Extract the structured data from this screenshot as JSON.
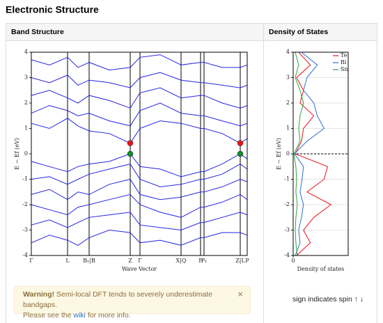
{
  "header": {
    "title": "Electronic Structure"
  },
  "panels": {
    "band_structure": "Band Structure",
    "dos": "Density of States"
  },
  "chart_data": [
    {
      "type": "bands",
      "xlabel": "Wave Vector",
      "ylabel": "E − Ef (eV)",
      "color": "#2424e0",
      "x": [
        0,
        0.26,
        0.52,
        0.67,
        0.83,
        1.12,
        1.42,
        1.56,
        1.85,
        2.15,
        2.43,
        2.48,
        2.74,
        3.0,
        3.1
      ],
      "xlim": [
        0,
        3.1
      ],
      "ylim": [
        -4,
        4
      ],
      "yticks": [
        -4,
        -3,
        -2,
        -1,
        0,
        1,
        2,
        3,
        4
      ],
      "xticks": [
        {
          "value": 0,
          "label": "Γ"
        },
        {
          "value": 0.52,
          "label": "L"
        },
        {
          "value": 0.83,
          "label": "B₁|B"
        },
        {
          "value": 1.42,
          "label": "Z"
        },
        {
          "value": 1.56,
          "label": "Γ"
        },
        {
          "value": 2.15,
          "label": "X|Q"
        },
        {
          "value": 2.43,
          "label": "F"
        },
        {
          "value": 2.48,
          "label": "P₁"
        },
        {
          "value": 3.0,
          "label": "Z|L"
        },
        {
          "value": 3.1,
          "label": "P"
        }
      ],
      "series": [
        {
          "values": [
            -0.3,
            -0.5,
            -0.7,
            -0.5,
            -0.4,
            -0.3,
            0,
            -0.5,
            -0.6,
            -0.9,
            -0.7,
            -0.7,
            -0.4,
            0,
            -0.2
          ]
        },
        {
          "values": [
            -1.0,
            -0.9,
            -1.2,
            -1.0,
            -0.8,
            -0.6,
            -0.4,
            -1.0,
            -1.3,
            -1.2,
            -1.0,
            -1.0,
            -0.8,
            -0.4,
            -0.6
          ]
        },
        {
          "values": [
            -1.6,
            -1.4,
            -1.8,
            -1.5,
            -1.6,
            -1.2,
            -1.0,
            -1.6,
            -1.8,
            -1.7,
            -1.5,
            -1.5,
            -1.3,
            -1.0,
            -1.1
          ]
        },
        {
          "values": [
            -2.0,
            -2.2,
            -2.4,
            -2.1,
            -2.0,
            -1.8,
            -1.6,
            -2.0,
            -2.3,
            -2.5,
            -2.1,
            -2.1,
            -1.9,
            -1.6,
            -1.8
          ]
        },
        {
          "values": [
            -2.8,
            -2.6,
            -2.9,
            -2.7,
            -2.5,
            -2.4,
            -2.3,
            -2.8,
            -2.9,
            -3.0,
            -2.7,
            -2.7,
            -2.5,
            -2.3,
            -2.4
          ]
        },
        {
          "values": [
            -3.5,
            -3.2,
            -3.4,
            -3.6,
            -3.3,
            -3.0,
            -3.1,
            -3.5,
            -3.4,
            -3.6,
            -3.3,
            -3.3,
            -3.1,
            -3.1,
            -3.2
          ]
        },
        {
          "values": [
            1.2,
            1.0,
            1.4,
            1.1,
            0.9,
            0.8,
            0.42,
            1.0,
            1.3,
            1.2,
            1.0,
            1.0,
            0.8,
            0.42,
            0.6
          ]
        },
        {
          "values": [
            1.6,
            1.9,
            1.7,
            1.5,
            1.6,
            1.3,
            1.1,
            1.7,
            2.0,
            1.6,
            1.5,
            1.5,
            1.3,
            1.1,
            1.2
          ]
        },
        {
          "values": [
            2.3,
            2.5,
            2.2,
            2.0,
            2.3,
            2.1,
            1.8,
            2.4,
            2.6,
            2.2,
            2.3,
            2.3,
            2.0,
            1.8,
            1.9
          ]
        },
        {
          "values": [
            3.0,
            2.8,
            3.1,
            2.7,
            2.9,
            2.8,
            2.6,
            3.0,
            3.2,
            2.9,
            2.8,
            2.8,
            2.7,
            2.6,
            2.7
          ]
        },
        {
          "values": [
            3.7,
            3.5,
            3.8,
            3.4,
            3.6,
            3.3,
            3.4,
            3.8,
            3.9,
            3.5,
            3.6,
            3.6,
            3.4,
            3.4,
            3.5
          ]
        }
      ],
      "markers": [
        {
          "x": 1.42,
          "y": 0.42,
          "color": "#e8141a"
        },
        {
          "x": 1.42,
          "y": 0,
          "color": "#138a2e"
        },
        {
          "x": 3.0,
          "y": 0.42,
          "color": "#e8141a"
        },
        {
          "x": 3.0,
          "y": 0,
          "color": "#138a2e"
        }
      ]
    },
    {
      "type": "dos",
      "xlabel": "Density of states",
      "ylabel": "E − Ef (eV)",
      "legend": "upper right",
      "y": [
        -4,
        -3.5,
        -3,
        -2.5,
        -2,
        -1.5,
        -1,
        -0.5,
        0,
        0.5,
        1,
        1.5,
        2,
        2.5,
        3,
        3.5,
        4
      ],
      "xlim": [
        0,
        8
      ],
      "xticks": [
        0
      ],
      "ylim": [
        -4,
        4
      ],
      "yticks": [
        -4,
        -3,
        -2,
        -1,
        0,
        1,
        2,
        3,
        4
      ],
      "hlines": [
        0
      ],
      "series": [
        {
          "name": "Te",
          "color": "#e8141a",
          "values": [
            0.5,
            2.5,
            1.5,
            3.0,
            5.5,
            2.0,
            4.5,
            5.0,
            0.3,
            1.2,
            1.5,
            3.0,
            1.0,
            1.5,
            0.5,
            2.5,
            0.8
          ]
        },
        {
          "name": "Bi",
          "color": "#2a6fcf",
          "values": [
            0.3,
            1.0,
            0.8,
            1.2,
            1.5,
            1.0,
            1.3,
            1.5,
            0.2,
            2.0,
            4.5,
            3.5,
            3.0,
            1.5,
            2.0,
            3.5,
            1.2
          ]
        },
        {
          "name": "Sn",
          "color": "#2fa33a",
          "values": [
            0.6,
            0.4,
            0.3,
            0.4,
            0.6,
            0.4,
            0.5,
            0.4,
            0.1,
            1.0,
            0.8,
            1.0,
            1.5,
            1.0,
            0.3,
            0.8,
            0.3
          ]
        }
      ]
    }
  ],
  "warning": {
    "strong": "Warning!",
    "text": "Semi-local DFT tends to severely underestimate bandgaps.",
    "pre": "Please see the",
    "link": "wiki",
    "post": "for more info.",
    "close": "×"
  },
  "spin_note": "sign indicates spin ↑ ↓"
}
